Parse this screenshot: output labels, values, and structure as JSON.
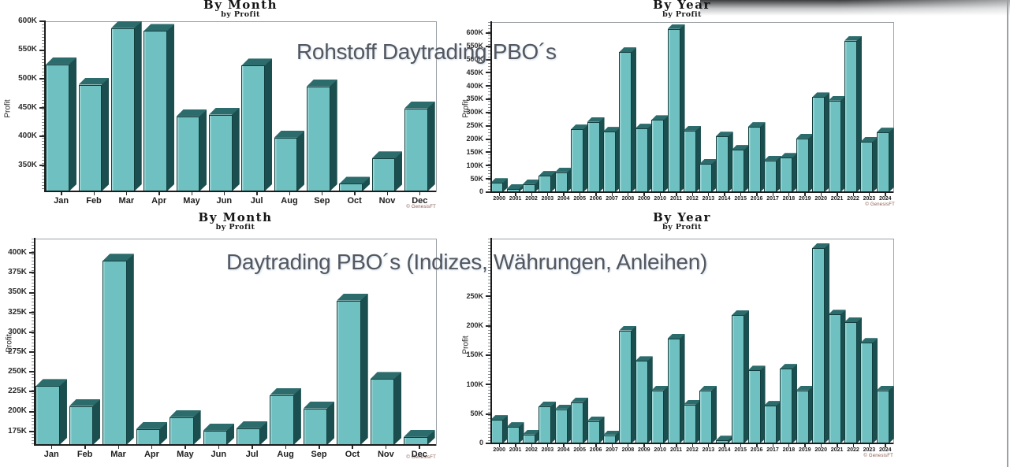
{
  "overlays": {
    "top_title": "Rohstoff Daytrading PBO´s",
    "bottom_title": "Daytrading PBO´s (Indizes, Währungen, Anleihen)"
  },
  "colors": {
    "bar_front": "#6FC1C1",
    "bar_top": "#2D6C6C",
    "bar_side": "#1B4F4F",
    "bar_outline": "#113E3E",
    "axis": "#1C1C1C",
    "frame": "#9AA0A4",
    "overlay_text": "#54575D"
  },
  "chart_data": [
    {
      "id": "month-commodities",
      "type": "bar",
      "title": "By Month",
      "subtitle": "by Profit",
      "ylabel": "Profit",
      "unit": "K",
      "copyright": "© GenesisFT",
      "categories": [
        "Jan",
        "Feb",
        "Mar",
        "Apr",
        "May",
        "Jun",
        "Jul",
        "Aug",
        "Sep",
        "Oct",
        "Nov",
        "Dec"
      ],
      "values_k": [
        525,
        490,
        588,
        583,
        435,
        438,
        523,
        398,
        487,
        318,
        362,
        449
      ],
      "ylim_k": [
        305,
        600
      ],
      "yticks_k": [
        350,
        400,
        450,
        500,
        550,
        600
      ],
      "grid": false,
      "legend": "none"
    },
    {
      "id": "year-commodities",
      "type": "bar",
      "title": "By Year",
      "subtitle": "by Profit",
      "ylabel": "Profit",
      "unit": "K",
      "copyright": "© GenesisFT",
      "categories": [
        "2000",
        "2001",
        "2002",
        "2003",
        "2004",
        "2005",
        "2006",
        "2007",
        "2008",
        "2009",
        "2010",
        "2011",
        "2012",
        "2013",
        "2014",
        "2015",
        "2016",
        "2017",
        "2018",
        "2019",
        "2020",
        "2021",
        "2022",
        "2023",
        "2024"
      ],
      "values_k": [
        35,
        12,
        30,
        62,
        75,
        237,
        265,
        228,
        528,
        240,
        272,
        615,
        232,
        107,
        210,
        160,
        246,
        119,
        130,
        202,
        358,
        345,
        571,
        190,
        225
      ],
      "ylim_k": [
        0,
        641
      ],
      "yticks_k": [
        0,
        50,
        100,
        150,
        200,
        250,
        300,
        350,
        400,
        450,
        500,
        550,
        600
      ],
      "grid": false,
      "legend": "none"
    },
    {
      "id": "month-indices",
      "type": "bar",
      "title": "By Month",
      "subtitle": "by Profit",
      "ylabel": "Profit",
      "unit": "K",
      "copyright": "© GenesisFT",
      "categories": [
        "Jan",
        "Feb",
        "Mar",
        "Apr",
        "May",
        "Jun",
        "Jul",
        "Aug",
        "Sep",
        "Oct",
        "Nov",
        "Dec"
      ],
      "values_k": [
        232,
        207,
        390,
        178,
        193,
        176,
        179,
        221,
        204,
        340,
        241,
        168
      ],
      "ylim_k": [
        158,
        418
      ],
      "yticks_k": [
        175,
        200,
        225,
        250,
        275,
        300,
        325,
        350,
        375,
        400
      ],
      "grid": false,
      "legend": "none"
    },
    {
      "id": "year-indices",
      "type": "bar",
      "title": "By Year",
      "subtitle": "by Profit",
      "ylabel": "Profit",
      "unit": "K",
      "copyright": "© GenesisFT",
      "categories": [
        "2000",
        "2001",
        "2002",
        "2003",
        "2004",
        "2005",
        "2006",
        "2007",
        "2008",
        "2009",
        "2010",
        "2011",
        "2012",
        "2013",
        "2014",
        "2015",
        "2016",
        "2017",
        "2018",
        "2019",
        "2020",
        "2021",
        "2022",
        "2023",
        "2024"
      ],
      "values_k": [
        40,
        28,
        15,
        63,
        58,
        70,
        38,
        14,
        192,
        140,
        90,
        178,
        66,
        90,
        5,
        218,
        124,
        64,
        127,
        90,
        332,
        219,
        206,
        171,
        90
      ],
      "ylim_k": [
        0,
        348
      ],
      "yticks_k": [
        0,
        50,
        100,
        150,
        200,
        250
      ],
      "grid": false,
      "legend": "none"
    }
  ]
}
